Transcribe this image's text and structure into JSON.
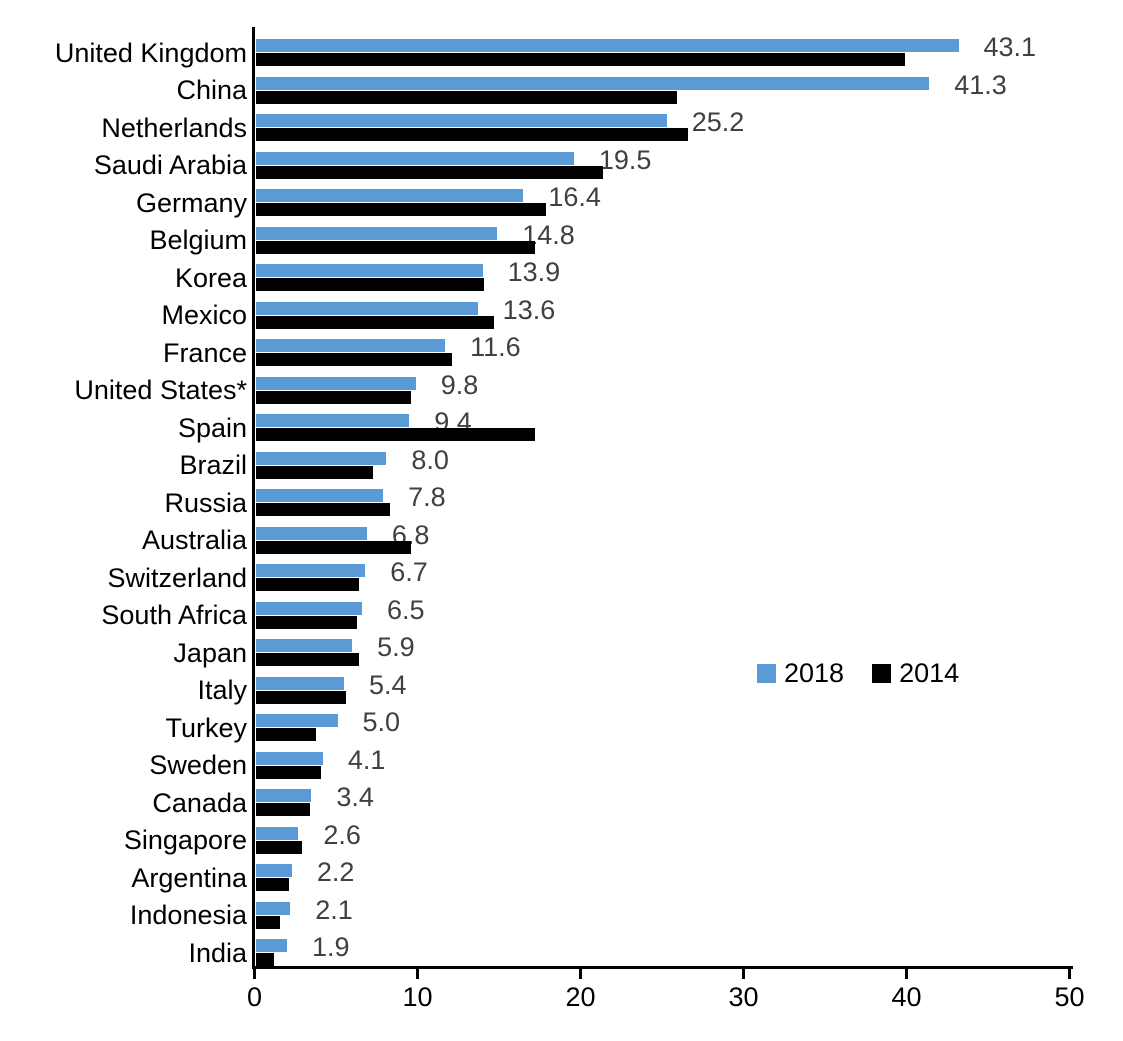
{
  "chart_data": {
    "type": "bar",
    "orientation": "horizontal",
    "title": "",
    "xlabel": "",
    "ylabel": "",
    "xlim": [
      0,
      50
    ],
    "x_ticks": [
      "0",
      "10",
      "20",
      "30",
      "40",
      "50"
    ],
    "grid": false,
    "legend_position": "center-right",
    "categories": [
      "United Kingdom",
      "China",
      "Netherlands",
      "Saudi Arabia",
      "Germany",
      "Belgium",
      "Korea",
      "Mexico",
      "France",
      "United States*",
      "Spain",
      "Brazil",
      "Russia",
      "Australia",
      "Switzerland",
      "South Africa",
      "Japan",
      "Italy",
      "Turkey",
      "Sweden",
      "Canada",
      "Singapore",
      "Argentina",
      "Indonesia",
      "India"
    ],
    "series": [
      {
        "name": "2018",
        "color": "#5B9BD5",
        "values": [
          43.1,
          41.3,
          25.2,
          19.5,
          16.4,
          14.8,
          13.9,
          13.6,
          11.6,
          9.8,
          9.4,
          8.0,
          7.8,
          6.8,
          6.7,
          6.5,
          5.9,
          5.4,
          5.0,
          4.1,
          3.4,
          2.6,
          2.2,
          2.1,
          1.9
        ]
      },
      {
        "name": "2014",
        "color": "#000000",
        "values": [
          39.8,
          25.8,
          26.5,
          21.3,
          17.8,
          17.1,
          14.0,
          14.6,
          12.0,
          9.5,
          17.1,
          7.2,
          8.2,
          9.5,
          6.3,
          6.2,
          6.3,
          5.5,
          3.7,
          4.0,
          3.3,
          2.8,
          2.0,
          1.5,
          1.1
        ]
      }
    ],
    "data_labels": [
      "43.1",
      "41.3",
      "25.2",
      "19.5",
      "16.4",
      "14.8",
      "13.9",
      "13.6",
      "11.6",
      "9.8",
      "9.4",
      "8.0",
      "7.8",
      "6.8",
      "6.7",
      "6.5",
      "5.9",
      "5.4",
      "5.0",
      "4.1",
      "3.4",
      "2.6",
      "2.2",
      "2.1",
      "1.9"
    ],
    "data_label_color": "#404040",
    "axis_color": "#000000"
  }
}
